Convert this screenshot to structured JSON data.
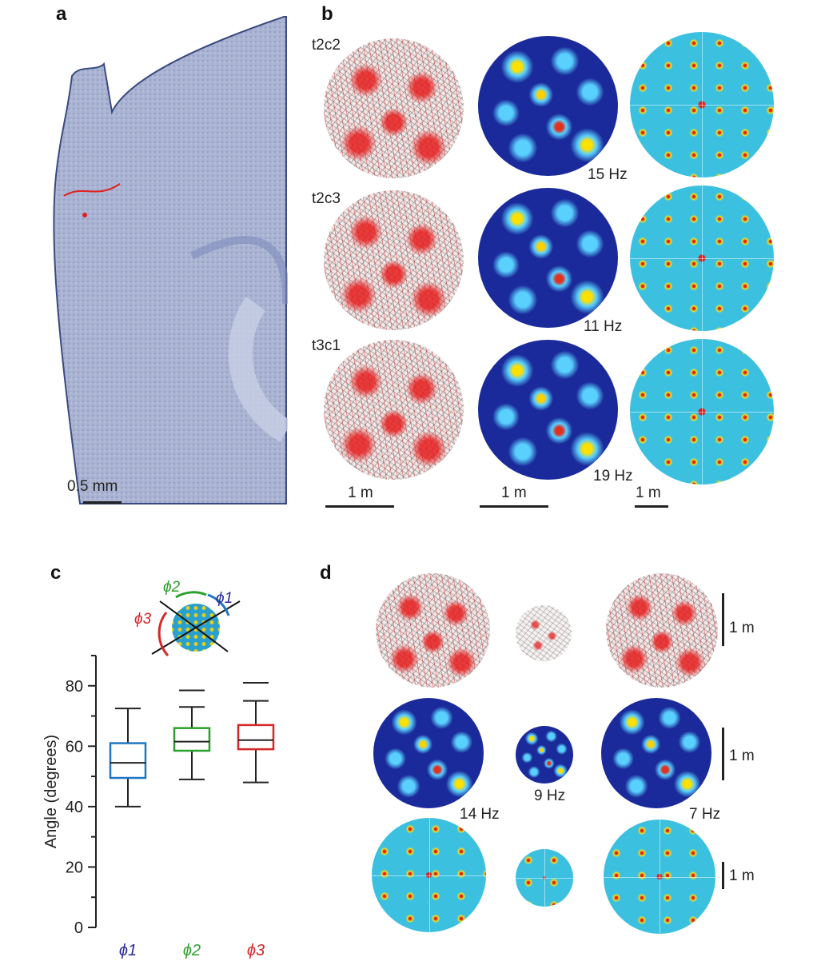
{
  "panel_a": {
    "label": "a",
    "scale_bar": "0.5 mm"
  },
  "panel_b": {
    "label": "b",
    "rows": [
      {
        "cell": "t2c2",
        "rate": "15 Hz"
      },
      {
        "cell": "t2c3",
        "rate": "11 Hz"
      },
      {
        "cell": "t3c1",
        "rate": "19 Hz"
      }
    ],
    "scale_bars": [
      "1 m",
      "1 m",
      "1 m"
    ]
  },
  "panel_c": {
    "label": "c",
    "inset_angles": [
      "ϕ2",
      "ϕ1",
      "ϕ3"
    ]
  },
  "panel_d": {
    "label": "d",
    "rates": [
      "14 Hz",
      "9 Hz",
      "7 Hz"
    ],
    "scale_bars": [
      "1 m",
      "1 m",
      "1 m"
    ]
  },
  "chart_data": {
    "type": "box",
    "ylabel": "Angle (degrees)",
    "ylim": [
      0,
      90
    ],
    "yticks": [
      0,
      20,
      40,
      60,
      80
    ],
    "categories": [
      "ϕ1",
      "ϕ2",
      "ϕ3"
    ],
    "colors": [
      "#1f77c0",
      "#2ca02c",
      "#d62728"
    ],
    "boxes": [
      {
        "whisker_low": 40,
        "q1": 49.5,
        "median": 54.5,
        "q3": 61,
        "whisker_high": 72.5,
        "outlier": null
      },
      {
        "whisker_low": 49,
        "q1": 58.5,
        "median": 61.5,
        "q3": 66,
        "whisker_high": 73,
        "outlier": 78.5
      },
      {
        "whisker_low": 48,
        "q1": 59,
        "median": 62,
        "q3": 67,
        "whisker_high": 75,
        "outlier": 81
      }
    ]
  }
}
